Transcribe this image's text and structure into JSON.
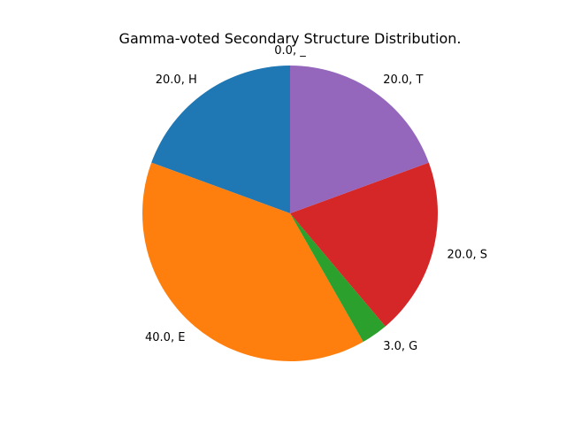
{
  "chart_data": {
    "type": "pie",
    "title": "Gamma-voted Secondary Structure Distribution.",
    "start_angle_deg": 90,
    "direction": "counterclockwise",
    "slices": [
      {
        "category": "_",
        "value": 0.0,
        "label": "0.0, _",
        "color": "#ff7f0e"
      },
      {
        "category": "H",
        "value": 20.0,
        "label": "20.0, H",
        "color": "#1f77b4"
      },
      {
        "category": "E",
        "value": 40.0,
        "label": "40.0, E",
        "color": "#ff7f0e"
      },
      {
        "category": "G",
        "value": 3.0,
        "label": "3.0, G",
        "color": "#2ca02c"
      },
      {
        "category": "S",
        "value": 20.0,
        "label": "20.0, S",
        "color": "#d62728"
      },
      {
        "category": "T",
        "value": 20.0,
        "label": "20.0, T",
        "color": "#9467bd"
      }
    ]
  }
}
